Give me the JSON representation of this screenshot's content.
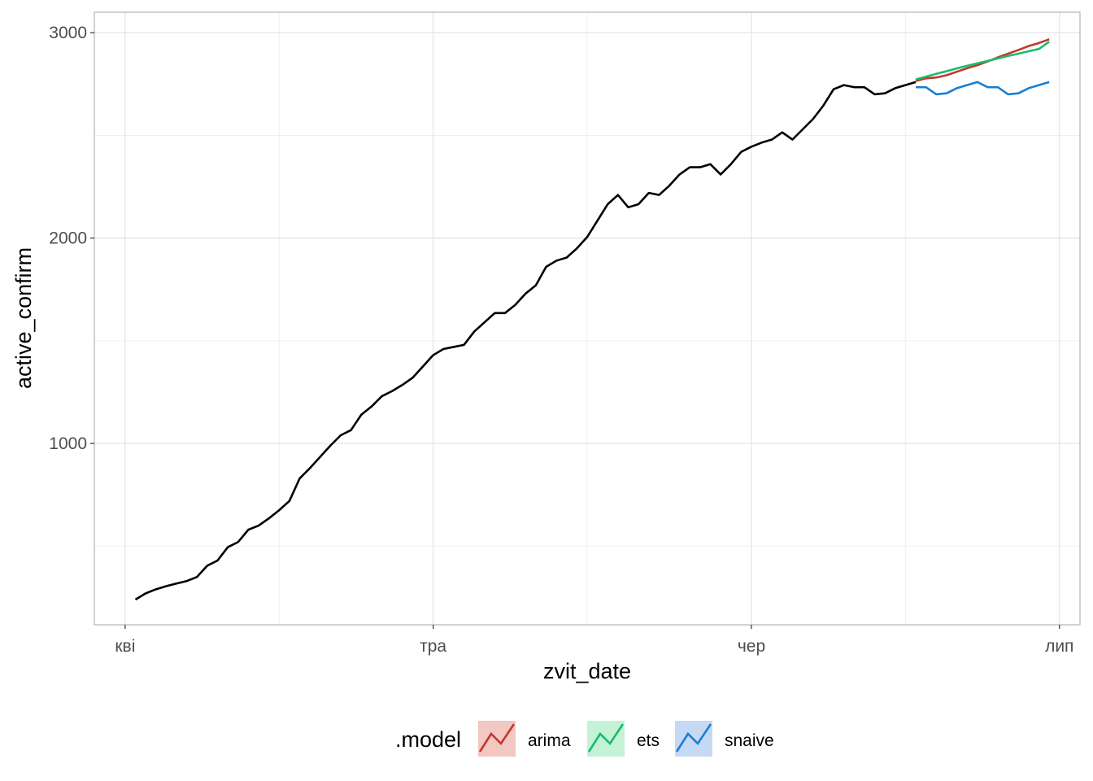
{
  "chart_data": {
    "type": "line",
    "xlabel": "zvit_date",
    "ylabel": "active_confirm",
    "x_ticks": [
      {
        "date": "2020-04-01",
        "label": "кві"
      },
      {
        "date": "2020-05-01",
        "label": "тра"
      },
      {
        "date": "2020-06-01",
        "label": "чер"
      },
      {
        "date": "2020-07-01",
        "label": "лип"
      }
    ],
    "x_minor_ticks": [
      "2020-04-16",
      "2020-05-16",
      "2020-06-16"
    ],
    "x_range": [
      "2020-03-29",
      "2020-07-03"
    ],
    "y_ticks": [
      1000,
      2000,
      3000
    ],
    "y_minor_ticks": [
      500,
      1500,
      2500
    ],
    "ylim": [
      117,
      3100
    ],
    "grid": true,
    "legend": {
      "title": ".model",
      "position": "bottom",
      "entries": [
        {
          "label": "arima",
          "color": "#c0392b",
          "fill": "#f3c7c2"
        },
        {
          "label": "ets",
          "color": "#1abc6b",
          "fill": "#c3f2d6"
        },
        {
          "label": "snaive",
          "color": "#1a7fd0",
          "fill": "#c6d9f4"
        }
      ]
    },
    "history": {
      "color": "#000000",
      "start_date": "2020-04-02",
      "values": [
        240,
        270,
        290,
        305,
        318,
        330,
        350,
        405,
        430,
        495,
        520,
        580,
        600,
        635,
        675,
        720,
        830,
        880,
        935,
        990,
        1040,
        1065,
        1140,
        1180,
        1230,
        1255,
        1285,
        1320,
        1375,
        1430,
        1460,
        1470,
        1480,
        1545,
        1590,
        1635,
        1635,
        1675,
        1730,
        1770,
        1860,
        1890,
        1905,
        1950,
        2005,
        2085,
        2165,
        2210,
        2150,
        2165,
        2220,
        2210,
        2255,
        2310,
        2345,
        2345,
        2360,
        2310,
        2360,
        2420,
        2445,
        2465,
        2480,
        2515,
        2480,
        2530,
        2580,
        2645,
        2725,
        2745,
        2735,
        2735,
        2700,
        2705,
        2730,
        2745,
        2760
      ]
    },
    "series": [
      {
        "name": "arima",
        "color": "#c0392b",
        "start_date": "2020-06-17",
        "values": [
          2765,
          2778,
          2782,
          2793,
          2810,
          2827,
          2842,
          2860,
          2880,
          2898,
          2916,
          2935,
          2950,
          2968
        ]
      },
      {
        "name": "ets",
        "color": "#1abc6b",
        "start_date": "2020-06-17",
        "values": [
          2772,
          2786,
          2800,
          2813,
          2826,
          2839,
          2851,
          2863,
          2875,
          2887,
          2898,
          2910,
          2921,
          2956
        ]
      },
      {
        "name": "snaive",
        "color": "#1a7fd0",
        "start_date": "2020-06-17",
        "values": [
          2735,
          2735,
          2700,
          2705,
          2730,
          2745,
          2760,
          2735,
          2735,
          2700,
          2705,
          2730,
          2745,
          2760
        ]
      }
    ]
  }
}
